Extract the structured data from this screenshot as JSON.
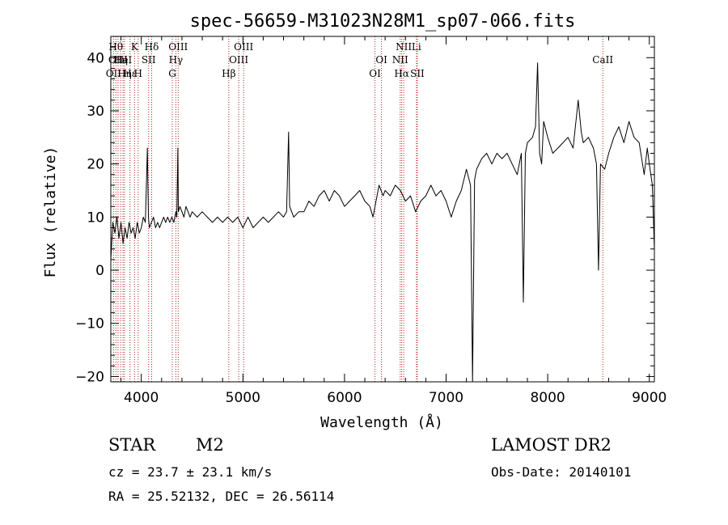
{
  "chart_data": {
    "type": "line",
    "title": "spec-56659-M31023N28M1_sp07-066.fits",
    "xlabel": "Wavelength (Å)",
    "ylabel": "Flux (relative)",
    "xlim": [
      3700,
      9050
    ],
    "ylim": [
      -21,
      44
    ],
    "xticks": [
      4000,
      5000,
      6000,
      7000,
      8000,
      9000
    ],
    "yticks": [
      -20,
      -10,
      0,
      10,
      20,
      30,
      40
    ],
    "grid": false,
    "series": [
      {
        "points": [
          [
            3700,
            2
          ],
          [
            3720,
            9
          ],
          [
            3740,
            7
          ],
          [
            3760,
            10
          ],
          [
            3780,
            6
          ],
          [
            3800,
            9
          ],
          [
            3820,
            5
          ],
          [
            3840,
            8
          ],
          [
            3860,
            6
          ],
          [
            3880,
            9
          ],
          [
            3900,
            7
          ],
          [
            3920,
            8
          ],
          [
            3940,
            6
          ],
          [
            3960,
            9
          ],
          [
            3980,
            7
          ],
          [
            4000,
            8
          ],
          [
            4020,
            10
          ],
          [
            4040,
            9
          ],
          [
            4060,
            23
          ],
          [
            4070,
            10
          ],
          [
            4080,
            8
          ],
          [
            4100,
            9
          ],
          [
            4120,
            10
          ],
          [
            4140,
            8
          ],
          [
            4160,
            9
          ],
          [
            4180,
            8
          ],
          [
            4200,
            9
          ],
          [
            4220,
            10
          ],
          [
            4240,
            9
          ],
          [
            4260,
            10
          ],
          [
            4280,
            9
          ],
          [
            4300,
            10
          ],
          [
            4320,
            9
          ],
          [
            4340,
            11
          ],
          [
            4350,
            10
          ],
          [
            4360,
            23
          ],
          [
            4365,
            11
          ],
          [
            4380,
            12
          ],
          [
            4400,
            11
          ],
          [
            4420,
            10
          ],
          [
            4440,
            12
          ],
          [
            4460,
            11
          ],
          [
            4480,
            10
          ],
          [
            4500,
            11
          ],
          [
            4550,
            10
          ],
          [
            4600,
            11
          ],
          [
            4650,
            10
          ],
          [
            4700,
            9
          ],
          [
            4750,
            10
          ],
          [
            4800,
            9
          ],
          [
            4850,
            10
          ],
          [
            4900,
            9
          ],
          [
            4950,
            10
          ],
          [
            5000,
            8
          ],
          [
            5050,
            10
          ],
          [
            5100,
            8
          ],
          [
            5150,
            9
          ],
          [
            5200,
            10
          ],
          [
            5250,
            9
          ],
          [
            5300,
            10
          ],
          [
            5350,
            11
          ],
          [
            5400,
            10
          ],
          [
            5430,
            11
          ],
          [
            5450,
            26
          ],
          [
            5460,
            12
          ],
          [
            5500,
            10
          ],
          [
            5550,
            11
          ],
          [
            5600,
            11
          ],
          [
            5650,
            13
          ],
          [
            5700,
            12
          ],
          [
            5750,
            14
          ],
          [
            5800,
            15
          ],
          [
            5850,
            13
          ],
          [
            5900,
            15
          ],
          [
            5950,
            14
          ],
          [
            6000,
            12
          ],
          [
            6050,
            13
          ],
          [
            6100,
            14
          ],
          [
            6150,
            15
          ],
          [
            6200,
            13
          ],
          [
            6250,
            12
          ],
          [
            6280,
            10
          ],
          [
            6300,
            12
          ],
          [
            6340,
            16
          ],
          [
            6380,
            14
          ],
          [
            6400,
            15
          ],
          [
            6450,
            14
          ],
          [
            6500,
            16
          ],
          [
            6550,
            15
          ],
          [
            6600,
            13
          ],
          [
            6650,
            14
          ],
          [
            6700,
            11
          ],
          [
            6750,
            13
          ],
          [
            6800,
            14
          ],
          [
            6850,
            16
          ],
          [
            6900,
            14
          ],
          [
            6950,
            15
          ],
          [
            7000,
            13
          ],
          [
            7050,
            10
          ],
          [
            7100,
            13
          ],
          [
            7150,
            15
          ],
          [
            7200,
            19
          ],
          [
            7240,
            16
          ],
          [
            7260,
            -22
          ],
          [
            7280,
            17
          ],
          [
            7300,
            19
          ],
          [
            7350,
            21
          ],
          [
            7400,
            22
          ],
          [
            7450,
            20
          ],
          [
            7500,
            22
          ],
          [
            7550,
            21
          ],
          [
            7600,
            22
          ],
          [
            7650,
            20
          ],
          [
            7700,
            18
          ],
          [
            7740,
            22
          ],
          [
            7760,
            -6
          ],
          [
            7780,
            22
          ],
          [
            7800,
            24
          ],
          [
            7850,
            25
          ],
          [
            7880,
            27
          ],
          [
            7900,
            39
          ],
          [
            7920,
            22
          ],
          [
            7940,
            20
          ],
          [
            7960,
            28
          ],
          [
            8000,
            25
          ],
          [
            8050,
            22
          ],
          [
            8100,
            23
          ],
          [
            8150,
            24
          ],
          [
            8200,
            25
          ],
          [
            8250,
            23
          ],
          [
            8300,
            32
          ],
          [
            8330,
            26
          ],
          [
            8350,
            24
          ],
          [
            8400,
            25
          ],
          [
            8450,
            23
          ],
          [
            8480,
            20
          ],
          [
            8500,
            0
          ],
          [
            8520,
            20
          ],
          [
            8560,
            19
          ],
          [
            8600,
            22
          ],
          [
            8650,
            25
          ],
          [
            8700,
            27
          ],
          [
            8750,
            24
          ],
          [
            8800,
            28
          ],
          [
            8850,
            25
          ],
          [
            8900,
            24
          ],
          [
            8950,
            18
          ],
          [
            8980,
            23
          ],
          [
            9000,
            20
          ],
          [
            9030,
            16
          ],
          [
            9050,
            4
          ]
        ]
      }
    ],
    "lines": [
      {
        "wl": 3727,
        "row": 3,
        "label": "OII"
      },
      {
        "wl": 3750,
        "row": 1,
        "label": "Hθ"
      },
      {
        "wl": 3771,
        "row": 2,
        "label": "OIII"
      },
      {
        "wl": 3797,
        "row": 2,
        "label": "Hη"
      },
      {
        "wl": 3820,
        "row": 2,
        "label": "HeI"
      },
      {
        "wl": 3835,
        "row": 3,
        "label": "Hη"
      },
      {
        "wl": 3889,
        "row": 3,
        "label": "Hε"
      },
      {
        "wl": 3934,
        "row": 1,
        "label": "K"
      },
      {
        "wl": 3969,
        "row": 3,
        "label": "H"
      },
      {
        "wl": 4072,
        "row": 2,
        "label": "SII"
      },
      {
        "wl": 4102,
        "row": 1,
        "label": "Hδ"
      },
      {
        "wl": 4305,
        "row": 3,
        "label": "G"
      },
      {
        "wl": 4340,
        "row": 2,
        "label": "Hγ"
      },
      {
        "wl": 4363,
        "row": 1,
        "label": "OIII"
      },
      {
        "wl": 4861,
        "row": 3,
        "label": "Hβ"
      },
      {
        "wl": 4959,
        "row": 2,
        "label": "OIII"
      },
      {
        "wl": 5007,
        "row": 1,
        "label": "OIII"
      },
      {
        "wl": 6300,
        "row": 3,
        "label": "OI"
      },
      {
        "wl": 6364,
        "row": 2,
        "label": "OI"
      },
      {
        "wl": 6548,
        "row": 2,
        "label": "NII"
      },
      {
        "wl": 6563,
        "row": 3,
        "label": "Hα"
      },
      {
        "wl": 6583,
        "row": 1,
        "label": "NII"
      },
      {
        "wl": 6708,
        "row": 1,
        "label": "Li"
      },
      {
        "wl": 6717,
        "row": 3,
        "label": "SII"
      },
      {
        "wl": 8542,
        "row": 2,
        "label": "CaII"
      }
    ]
  },
  "info": {
    "object_class": "STAR",
    "subclass": "M2",
    "survey": "LAMOST DR2",
    "cz": "cz = 23.7 ± 23.1 km/s",
    "obs_date": "Obs-Date: 20140101",
    "coords": "RA =  25.52132, DEC =  26.56114"
  }
}
